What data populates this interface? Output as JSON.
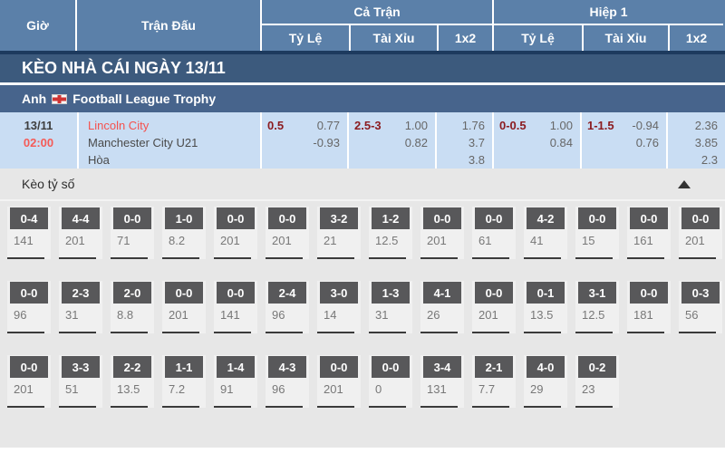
{
  "header": {
    "col_time": "Giờ",
    "col_match": "Trận Đấu",
    "group_full": "Cả Trận",
    "group_half": "Hiệp 1",
    "sub_handicap": "Tỷ Lệ",
    "sub_over_under": "Tài Xỉu",
    "sub_1x2": "1x2"
  },
  "banner": {
    "title": "KÈO NHÀ CÁI NGÀY 13/11"
  },
  "league": {
    "country": "Anh",
    "flag_icon": "england-flag",
    "name": "Football League Trophy"
  },
  "match": {
    "date": "13/11",
    "time": "02:00",
    "home": "Lincoln City",
    "away": "Manchester City U21",
    "draw_label": "Hòa",
    "full": {
      "handicap": {
        "line": "0.5",
        "odds1": "0.77",
        "odds2": "-0.93"
      },
      "over_under": {
        "line": "2.5-3",
        "odds1": "1.00",
        "odds2": "0.82"
      },
      "one_x_two": {
        "home": "1.76",
        "draw": "3.7",
        "away": "3.8"
      }
    },
    "half": {
      "handicap": {
        "line": "0-0.5",
        "odds1": "1.00",
        "odds2": "0.84"
      },
      "over_under": {
        "line": "1-1.5",
        "odds1": "-0.94",
        "odds2": "0.76"
      },
      "one_x_two": {
        "home": "2.36",
        "draw": "3.85",
        "away": "2.3"
      }
    }
  },
  "score_section": {
    "title": "Kèo tỷ số",
    "collapse_icon": "triangle-up",
    "rows": [
      [
        {
          "score": "0-4",
          "odds": "141"
        },
        {
          "score": "4-4",
          "odds": "201"
        },
        {
          "score": "0-0",
          "odds": "71"
        },
        {
          "score": "1-0",
          "odds": "8.2"
        },
        {
          "score": "0-0",
          "odds": "201"
        },
        {
          "score": "0-0",
          "odds": "201"
        },
        {
          "score": "3-2",
          "odds": "21"
        },
        {
          "score": "1-2",
          "odds": "12.5"
        },
        {
          "score": "0-0",
          "odds": "201"
        },
        {
          "score": "0-0",
          "odds": "61"
        },
        {
          "score": "4-2",
          "odds": "41"
        },
        {
          "score": "0-0",
          "odds": "15"
        },
        {
          "score": "0-0",
          "odds": "161"
        },
        {
          "score": "0-0",
          "odds": "201"
        }
      ],
      [
        {
          "score": "0-0",
          "odds": "96"
        },
        {
          "score": "2-3",
          "odds": "31"
        },
        {
          "score": "2-0",
          "odds": "8.8"
        },
        {
          "score": "0-0",
          "odds": "201"
        },
        {
          "score": "0-0",
          "odds": "141"
        },
        {
          "score": "2-4",
          "odds": "96"
        },
        {
          "score": "3-0",
          "odds": "14"
        },
        {
          "score": "1-3",
          "odds": "31"
        },
        {
          "score": "4-1",
          "odds": "26"
        },
        {
          "score": "0-0",
          "odds": "201"
        },
        {
          "score": "0-1",
          "odds": "13.5"
        },
        {
          "score": "3-1",
          "odds": "12.5"
        },
        {
          "score": "0-0",
          "odds": "181"
        },
        {
          "score": "0-3",
          "odds": "56"
        }
      ],
      [
        {
          "score": "0-0",
          "odds": "201"
        },
        {
          "score": "3-3",
          "odds": "51"
        },
        {
          "score": "2-2",
          "odds": "13.5"
        },
        {
          "score": "1-1",
          "odds": "7.2"
        },
        {
          "score": "1-4",
          "odds": "91"
        },
        {
          "score": "4-3",
          "odds": "96"
        },
        {
          "score": "0-0",
          "odds": "201"
        },
        {
          "score": "0-0",
          "odds": "0"
        },
        {
          "score": "3-4",
          "odds": "131"
        },
        {
          "score": "2-1",
          "odds": "7.7"
        },
        {
          "score": "4-0",
          "odds": "29"
        },
        {
          "score": "0-2",
          "odds": "23"
        }
      ]
    ]
  },
  "colors": {
    "header_bg": "#5b80a9",
    "header_border": "#1d3a5e",
    "banner_bg": "#3c5a7d",
    "league_bg": "#47648c",
    "match_row_bg": "#c9ddf3",
    "handicap_text": "#8b1c20",
    "team_home_text": "#f5514d",
    "time_text": "#f55b57",
    "score_box_bg": "#58585a",
    "section_bg": "#e7e7e7"
  }
}
